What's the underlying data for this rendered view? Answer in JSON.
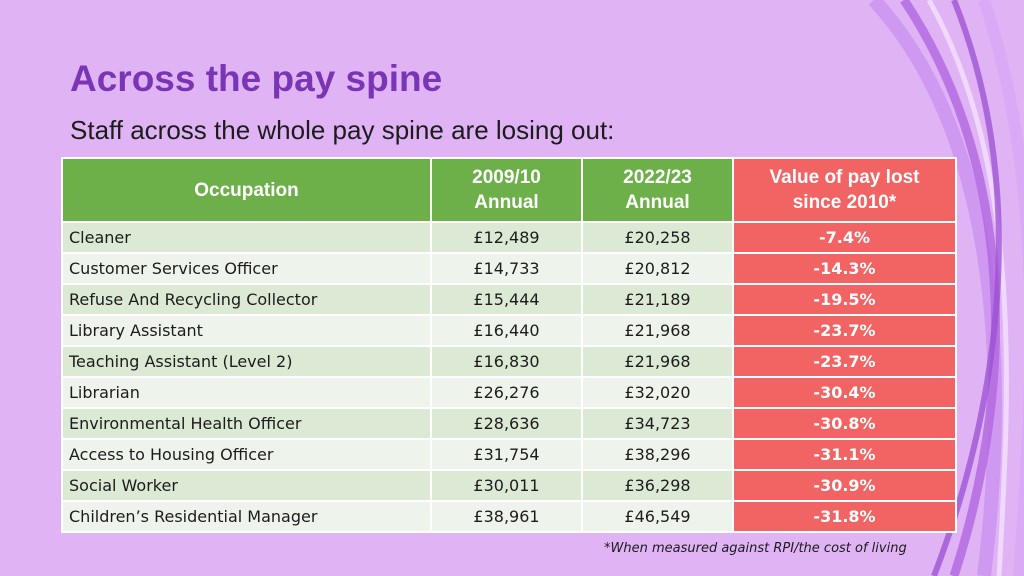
{
  "title": "Across the pay spine",
  "subtitle": "Staff across the whole pay spine are losing out:",
  "table": {
    "headers": {
      "occupation": "Occupation",
      "y2009_line1": "2009/10",
      "y2009_line2": "Annual",
      "y2022_line1": "2022/23",
      "y2022_line2": "Annual",
      "lost_line1": "Value of pay lost",
      "lost_line2": "since 2010*"
    },
    "rows": [
      {
        "occupation": "Cleaner",
        "y2009": "£12,489",
        "y2022": "£20,258",
        "lost": "-7.4%"
      },
      {
        "occupation": "Customer Services Officer",
        "y2009": "£14,733",
        "y2022": "£20,812",
        "lost": "-14.3%"
      },
      {
        "occupation": "Refuse And Recycling Collector",
        "y2009": "£15,444",
        "y2022": "£21,189",
        "lost": "-19.5%"
      },
      {
        "occupation": "Library Assistant",
        "y2009": "£16,440",
        "y2022": "£21,968",
        "lost": "-23.7%"
      },
      {
        "occupation": "Teaching Assistant (Level 2)",
        "y2009": "£16,830",
        "y2022": "£21,968",
        "lost": "-23.7%"
      },
      {
        "occupation": "Librarian",
        "y2009": "£26,276",
        "y2022": "£32,020",
        "lost": "-30.4%"
      },
      {
        "occupation": "Environmental Health Officer",
        "y2009": "£28,636",
        "y2022": "£34,723",
        "lost": "-30.8%"
      },
      {
        "occupation": "Access to Housing Officer",
        "y2009": "£31,754",
        "y2022": "£38,296",
        "lost": "-31.1%"
      },
      {
        "occupation": "Social Worker",
        "y2009": "£30,011",
        "y2022": "£36,298",
        "lost": "-30.9%"
      },
      {
        "occupation": "Children’s Residential Manager",
        "y2009": "£38,961",
        "y2022": "£46,549",
        "lost": "-31.8%"
      }
    ]
  },
  "footnote": "*When measured against RPI/the cost of living",
  "colors": {
    "background": "#e0b3f5",
    "title": "#7a35b4",
    "header_green": "#6db04a",
    "header_red": "#f26363",
    "row_a": "#dbe9d5",
    "row_b": "#eef4eb"
  }
}
